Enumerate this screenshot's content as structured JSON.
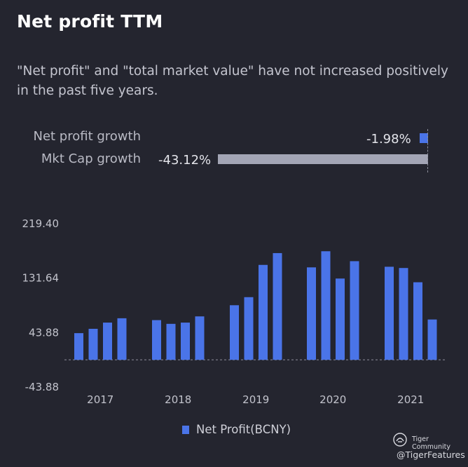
{
  "title": "Net profit TTM",
  "subtitle": "\"Net profit\" and \"total market value\" have not increased positively in the past five years.",
  "growth": {
    "net_profit_label": "Net profit growth",
    "net_profit_value": "-1.98%",
    "mkt_cap_label": "Mkt Cap growth",
    "mkt_cap_value": "-43.12%"
  },
  "chart_data": {
    "type": "bar",
    "title": "Net profit TTM",
    "xlabel": "",
    "ylabel": "",
    "ylim": [
      -43.88,
      219.4
    ],
    "ytick_labels": [
      "219.40",
      "131.64",
      "43.88",
      "-43.88"
    ],
    "yticks": [
      219.4,
      131.64,
      43.88,
      -43.88
    ],
    "categories": [
      "2017",
      "2018",
      "2019",
      "2020",
      "2021"
    ],
    "series": [
      {
        "name": "Net Profit(BCNY)",
        "color": "#4a74e8",
        "groups": [
          {
            "year": "2017",
            "values": [
              43,
              50,
              60,
              67
            ]
          },
          {
            "year": "2018",
            "values": [
              64,
              58,
              60,
              70
            ]
          },
          {
            "year": "2019",
            "values": [
              88,
              101,
              153,
              172
            ]
          },
          {
            "year": "2020",
            "values": [
              149,
              175,
              131,
              159
            ]
          },
          {
            "year": "2021",
            "values": [
              150,
              148,
              125,
              65
            ]
          }
        ]
      }
    ],
    "legend": "bottom-center"
  },
  "legend": {
    "label": "Net Profit(BCNY)"
  },
  "brand": {
    "name": "Tiger Community",
    "handle": "@TigerFeatures"
  }
}
